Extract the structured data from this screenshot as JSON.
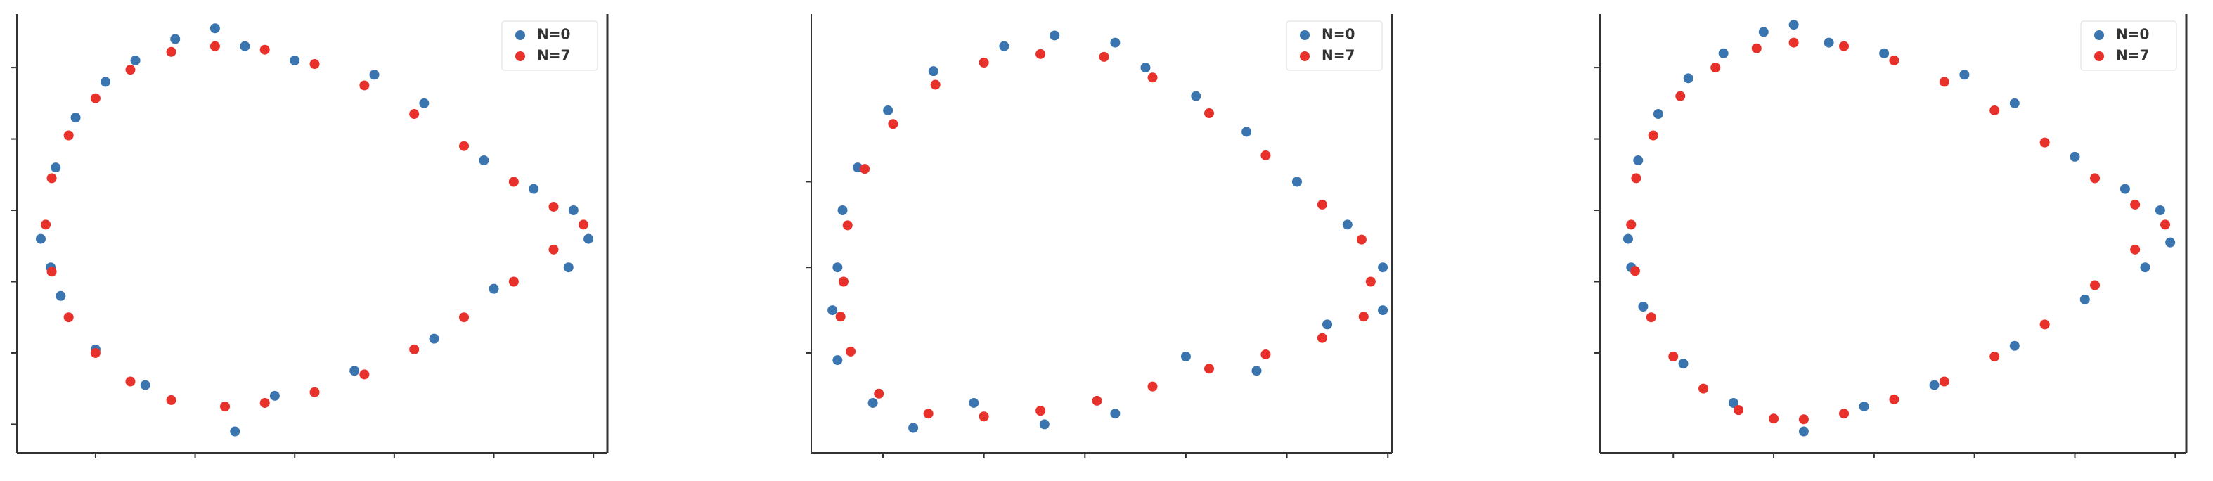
{
  "chart_data": [
    {
      "type": "scatter",
      "legend": "upper right",
      "xlim": [
        -0.79,
        5.14
      ],
      "ylim": [
        -0.4,
        5.75
      ],
      "xticks": [
        0,
        1,
        2,
        3,
        4,
        5
      ],
      "yticks": [
        0,
        1,
        2,
        3,
        4,
        5
      ],
      "series": [
        {
          "name": "N=0",
          "color": "#3b75af",
          "x": [
            -0.55,
            -0.4,
            -0.2,
            0.1,
            0.4,
            0.8,
            1.2,
            1.5,
            2.0,
            2.8,
            3.3,
            3.9,
            4.4,
            4.8,
            4.95,
            4.75,
            4.0,
            3.4,
            2.6,
            1.8,
            1.4,
            0.5,
            0.0,
            -0.35,
            -0.45
          ],
          "y": [
            2.6,
            3.6,
            4.3,
            4.8,
            5.1,
            5.4,
            5.55,
            5.3,
            5.1,
            4.9,
            4.5,
            3.7,
            3.3,
            3.0,
            2.6,
            2.2,
            1.9,
            1.2,
            0.75,
            0.4,
            -0.1,
            0.55,
            1.05,
            1.8,
            2.2
          ]
        },
        {
          "name": "N=7",
          "color": "#e8312a",
          "x": [
            -0.5,
            -0.44,
            -0.27,
            0.0,
            0.35,
            0.76,
            1.2,
            1.7,
            2.2,
            2.7,
            3.2,
            3.7,
            4.2,
            4.6,
            4.9,
            4.6,
            4.2,
            3.7,
            3.2,
            2.7,
            2.2,
            1.7,
            1.3,
            0.76,
            0.35,
            0.0,
            -0.27,
            -0.44
          ],
          "y": [
            2.8,
            3.45,
            4.05,
            4.57,
            4.97,
            5.22,
            5.3,
            5.25,
            5.05,
            4.75,
            4.35,
            3.9,
            3.4,
            3.05,
            2.8,
            2.45,
            2.0,
            1.5,
            1.05,
            0.7,
            0.45,
            0.3,
            0.25,
            0.34,
            0.6,
            1.0,
            1.5,
            2.14
          ]
        }
      ]
    },
    {
      "type": "scatter",
      "legend": "upper right",
      "xlim": [
        -0.71,
        5.04
      ],
      "ylim": [
        -0.4,
        5.75
      ],
      "xticks": [
        0,
        1,
        2,
        3,
        4,
        5
      ],
      "yticks": [
        1,
        2.2,
        3.4
      ],
      "series": [
        {
          "name": "N=0",
          "color": "#3b75af",
          "x": [
            -0.45,
            -0.4,
            -0.25,
            0.05,
            0.5,
            1.2,
            1.7,
            2.3,
            2.6,
            3.1,
            3.6,
            4.1,
            4.6,
            4.95,
            4.95,
            4.4,
            3.7,
            3.0,
            2.3,
            1.6,
            0.9,
            0.3,
            -0.1,
            -0.45,
            -0.5
          ],
          "y": [
            2.2,
            3.0,
            3.6,
            4.4,
            4.95,
            5.3,
            5.45,
            5.35,
            5.0,
            4.6,
            4.1,
            3.4,
            2.8,
            2.2,
            1.6,
            1.4,
            0.75,
            0.95,
            0.15,
            0.0,
            0.3,
            -0.05,
            0.3,
            0.9,
            1.6
          ]
        },
        {
          "name": "N=7",
          "color": "#e8312a",
          "x": [
            -0.39,
            -0.35,
            -0.18,
            0.1,
            0.52,
            1.0,
            1.56,
            2.19,
            2.67,
            3.23,
            3.79,
            4.35,
            4.74,
            4.83,
            4.76,
            4.35,
            3.79,
            3.23,
            2.67,
            2.12,
            1.56,
            1.0,
            0.45,
            -0.04,
            -0.32,
            -0.42
          ],
          "y": [
            2.0,
            2.79,
            3.58,
            4.21,
            4.76,
            5.07,
            5.19,
            5.15,
            4.86,
            4.36,
            3.77,
            3.08,
            2.59,
            2.0,
            1.51,
            1.21,
            0.98,
            0.78,
            0.53,
            0.33,
            0.19,
            0.11,
            0.15,
            0.43,
            1.02,
            1.51
          ]
        }
      ]
    },
    {
      "type": "scatter",
      "legend": "upper right",
      "xlim": [
        -0.73,
        5.11
      ],
      "ylim": [
        -0.4,
        5.75
      ],
      "xticks": [
        0,
        1,
        2,
        3,
        4,
        5
      ],
      "yticks": [
        1,
        2,
        3,
        4,
        5
      ],
      "series": [
        {
          "name": "N=0",
          "color": "#3b75af",
          "x": [
            -0.45,
            -0.35,
            -0.15,
            0.15,
            0.5,
            0.9,
            1.2,
            1.55,
            2.1,
            2.9,
            3.4,
            4.0,
            4.5,
            4.85,
            4.95,
            4.7,
            4.1,
            3.4,
            2.6,
            1.9,
            1.3,
            0.6,
            0.1,
            -0.3,
            -0.42
          ],
          "y": [
            2.6,
            3.7,
            4.35,
            4.85,
            5.2,
            5.5,
            5.6,
            5.35,
            5.2,
            4.9,
            4.5,
            3.75,
            3.3,
            3.0,
            2.55,
            2.2,
            1.75,
            1.1,
            0.55,
            0.25,
            -0.1,
            0.3,
            0.85,
            1.65,
            2.2
          ]
        },
        {
          "name": "N=7",
          "color": "#e8312a",
          "x": [
            -0.42,
            -0.37,
            -0.2,
            0.07,
            0.42,
            0.83,
            1.2,
            1.7,
            2.2,
            2.7,
            3.2,
            3.7,
            4.2,
            4.6,
            4.9,
            4.6,
            4.2,
            3.7,
            3.2,
            2.7,
            2.2,
            1.7,
            1.3,
            1.0,
            0.65,
            0.3,
            0.0,
            -0.22,
            -0.38
          ],
          "y": [
            2.8,
            3.45,
            4.05,
            4.6,
            5.0,
            5.27,
            5.35,
            5.3,
            5.1,
            4.8,
            4.4,
            3.95,
            3.45,
            3.08,
            2.8,
            2.45,
            1.95,
            1.4,
            0.95,
            0.6,
            0.35,
            0.15,
            0.07,
            0.08,
            0.2,
            0.5,
            0.95,
            1.5,
            2.15
          ]
        }
      ]
    }
  ]
}
